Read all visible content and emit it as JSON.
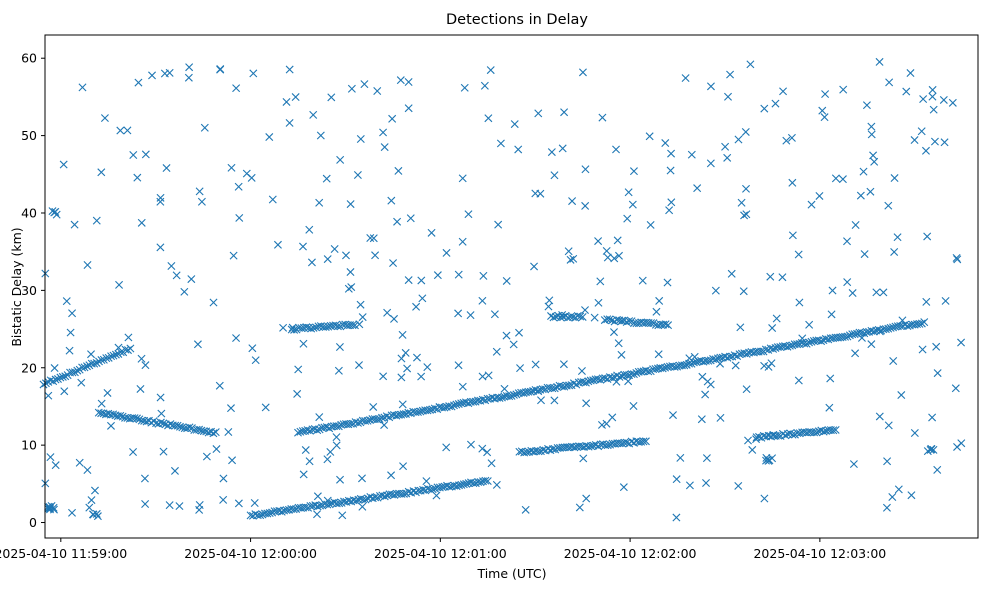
{
  "chart_data": {
    "type": "scatter",
    "title": "Detections in Delay",
    "xlabel": "Time (UTC)",
    "ylabel": "Bistatic Delay (km)",
    "marker": "x",
    "color": "#1f77b4",
    "x_axis": {
      "start": "2025-04-10 11:58:55",
      "end": "2025-04-10 12:03:50",
      "ticks": [
        {
          "time": "2025-04-10 11:59:00",
          "label": "2025-04-10 11:59:00"
        },
        {
          "time": "2025-04-10 12:00:00",
          "label": "2025-04-10 12:00:00"
        },
        {
          "time": "2025-04-10 12:01:00",
          "label": "2025-04-10 12:01:00"
        },
        {
          "time": "2025-04-10 12:02:00",
          "label": "2025-04-10 12:02:00"
        },
        {
          "time": "2025-04-10 12:03:00",
          "label": "2025-04-10 12:03:00"
        }
      ]
    },
    "y_axis": {
      "range": [
        -2,
        63
      ],
      "ticks": [
        {
          "value": 0,
          "label": "0"
        },
        {
          "value": 10,
          "label": "10"
        },
        {
          "value": 20,
          "label": "20"
        },
        {
          "value": 30,
          "label": "30"
        },
        {
          "value": 40,
          "label": "40"
        },
        {
          "value": 50,
          "label": "50"
        },
        {
          "value": 60,
          "label": "60"
        }
      ]
    },
    "tracks": [
      {
        "description": "rising track",
        "start": [
          "2025-04-10 11:58:53",
          17.6
        ],
        "end": [
          "2025-04-10 11:59:22",
          22.5
        ]
      },
      {
        "description": "falling track",
        "start": [
          "2025-04-10 11:59:12",
          14.2
        ],
        "end": [
          "2025-04-10 11:59:49",
          11.6
        ]
      },
      {
        "description": "long rising track",
        "start": [
          "2025-04-10 12:00:15",
          11.6
        ],
        "end": [
          "2025-04-10 12:03:33",
          25.9
        ]
      },
      {
        "description": "low track",
        "start": [
          "2025-04-10 12:00:00",
          0.9
        ],
        "end": [
          "2025-04-10 12:01:15",
          5.4
        ]
      },
      {
        "description": "middle track",
        "start": [
          "2025-04-10 12:01:25",
          9.1
        ],
        "end": [
          "2025-04-10 12:02:05",
          10.5
        ]
      },
      {
        "description": "cluster",
        "start": [
          "2025-04-10 12:02:40",
          11.0
        ],
        "end": [
          "2025-04-10 12:03:05",
          12.0
        ]
      },
      {
        "description": "short track",
        "start": [
          "2025-04-10 12:00:13",
          25.0
        ],
        "end": [
          "2025-04-10 12:00:33",
          25.6
        ]
      },
      {
        "description": "short track",
        "start": [
          "2025-04-10 12:01:35",
          26.6
        ],
        "end": [
          "2025-04-10 12:01:45",
          26.6
        ]
      },
      {
        "description": "short track",
        "start": [
          "2025-04-10 12:01:52",
          26.2
        ],
        "end": [
          "2025-04-10 12:02:12",
          25.5
        ]
      }
    ],
    "clusters": [
      {
        "time": "2025-04-10 11:58:57",
        "delay": 1.9,
        "count": 8
      },
      {
        "time": "2025-04-10 11:58:58",
        "delay": 40.0,
        "count": 4
      },
      {
        "time": "2025-04-10 11:59:11",
        "delay": 1.0,
        "count": 4
      },
      {
        "time": "2025-04-10 12:02:44",
        "delay": 8.2,
        "count": 6
      },
      {
        "time": "2025-04-10 12:03:35",
        "delay": 9.4,
        "count": 5
      }
    ],
    "noise": {
      "description": "scattered false detections",
      "time_range": [
        "2025-04-10 11:58:55",
        "2025-04-10 12:03:45"
      ],
      "delay_range": [
        0.5,
        59.8
      ],
      "count": 430
    }
  }
}
